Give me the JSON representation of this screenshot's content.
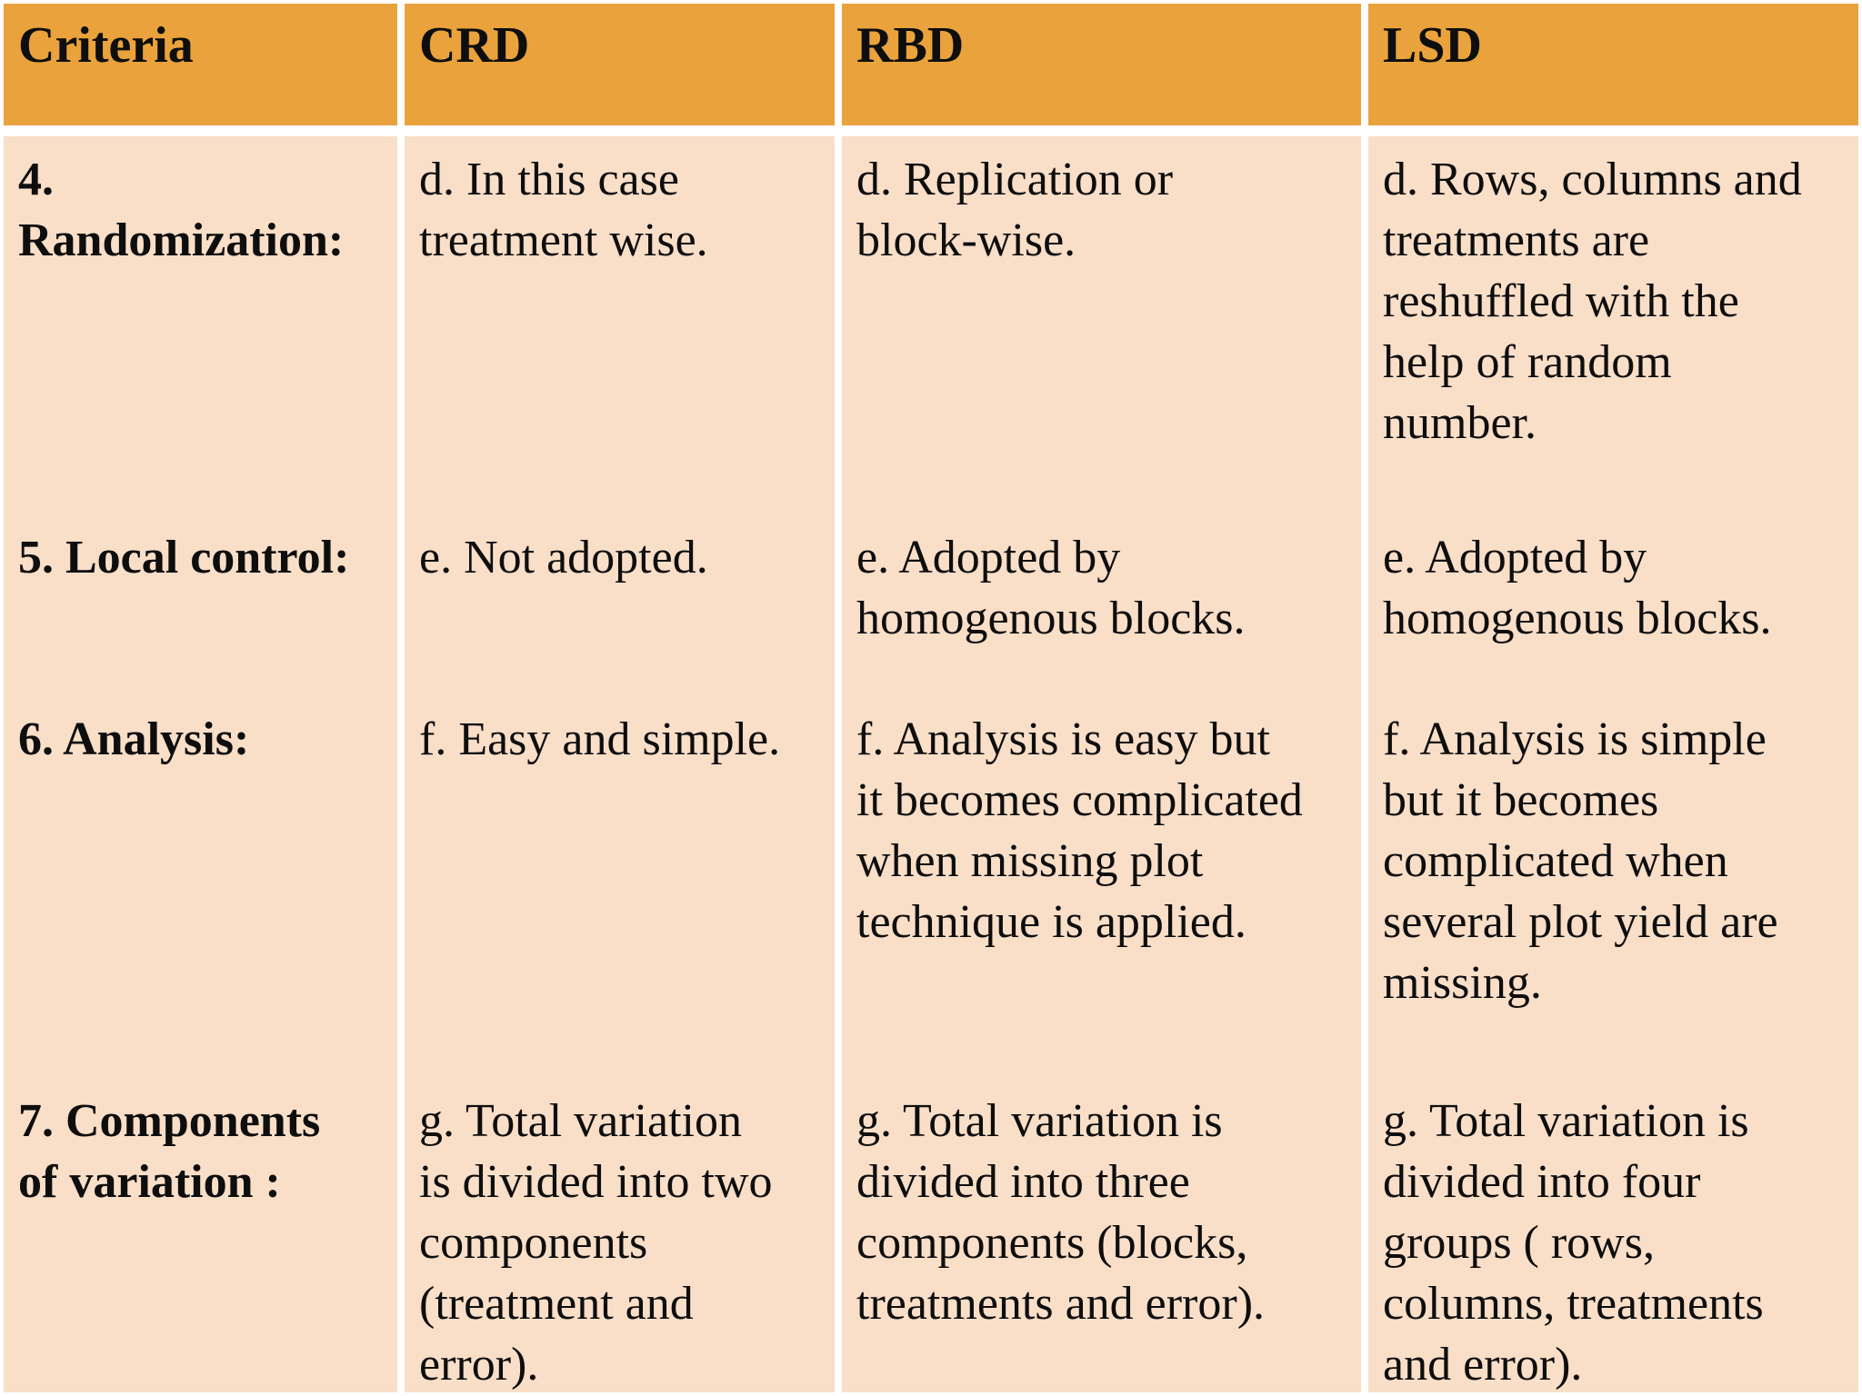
{
  "table": {
    "columns": [
      "Criteria",
      "CRD",
      "RBD",
      "LSD"
    ],
    "rows": [
      {
        "criteria": "4.\nRandomization:",
        "crd": "d. In this case\ntreatment wise.",
        "rbd": "d. Replication or\nblock-wise.",
        "lsd": "d. Rows, columns and\ntreatments are\nreshuffled with the\nhelp of random\nnumber."
      },
      {
        "criteria": "5. Local control:",
        "crd": "e. Not adopted.",
        "rbd": "e. Adopted by\nhomogenous blocks.",
        "lsd": "e. Adopted by\nhomogenous blocks."
      },
      {
        "criteria": "6. Analysis:",
        "crd": "f. Easy and simple.",
        "rbd": "f. Analysis is easy but\nit becomes complicated\nwhen missing plot\ntechnique is applied.",
        "lsd": "f. Analysis is simple\nbut it becomes\ncomplicated when\nseveral plot yield are\nmissing."
      },
      {
        "criteria": "7. Components\nof variation :",
        "crd": "g. Total variation\nis divided into two\ncomponents\n(treatment and\nerror).",
        "rbd": "g. Total variation is\ndivided into three\ncomponents (blocks,\ntreatments and error).",
        "lsd": "g. Total variation is\ndivided into four\ngroups ( rows,\ncolumns, treatments\nand error)."
      }
    ]
  },
  "colors": {
    "header_bg": "#E9A23C",
    "body_bg": "#F9DEC8",
    "separator": "#FFFFFF",
    "text": "#0E0E0E"
  }
}
